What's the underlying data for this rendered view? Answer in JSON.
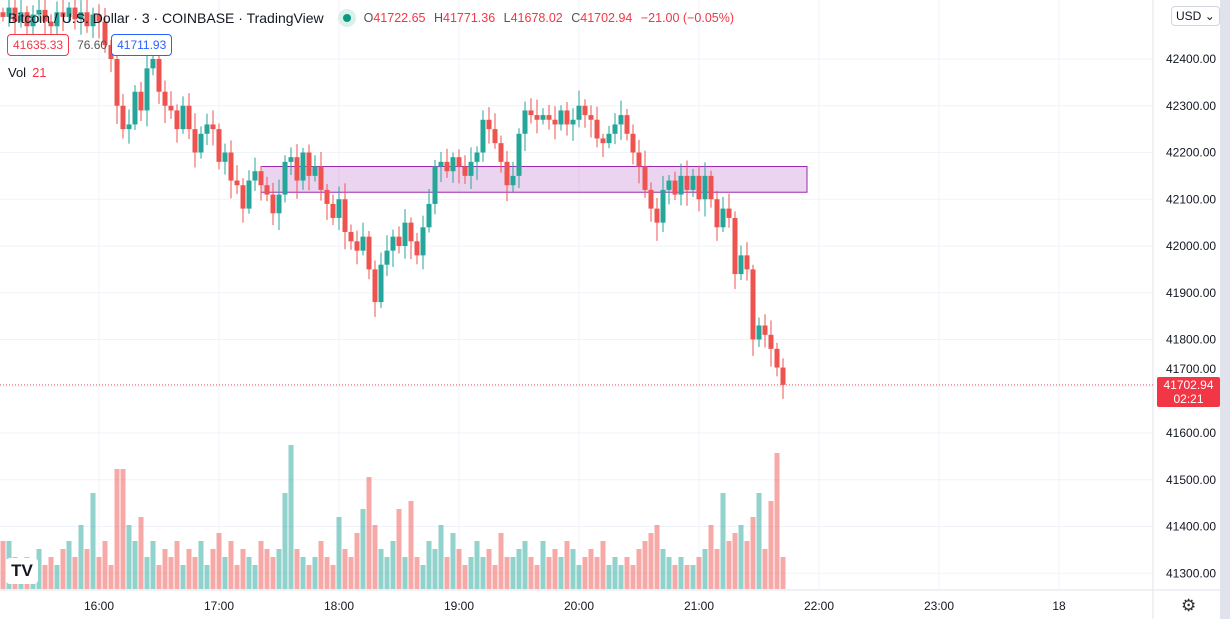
{
  "header": {
    "symbol": "Bitcoin / U.S. Dollar · 3 · COINBASE · TradingView",
    "ohlc": {
      "o_label": "O",
      "o": "41722.65",
      "h_label": "H",
      "h": "41771.36",
      "l_label": "L",
      "l": "41678.02",
      "c_label": "C",
      "c": "41702.94",
      "change": "−21.00 (−0.05%)"
    },
    "bid": "41635.33",
    "spread": "76.60",
    "ask": "41711.93"
  },
  "volume": {
    "label": "Vol",
    "value": "21"
  },
  "currency": "USD",
  "last_price": {
    "price": "41702.94",
    "countdown": "02:21"
  },
  "price_ticks": [
    "42400.00",
    "42300.00",
    "42200.00",
    "42100.00",
    "42000.00",
    "41900.00",
    "41800.00",
    "41700.00",
    "41600.00",
    "41500.00",
    "41400.00",
    "41300.00"
  ],
  "time_ticks": [
    "16:00",
    "17:00",
    "18:00",
    "19:00",
    "20:00",
    "21:00",
    "22:00",
    "23:00",
    "18"
  ],
  "colors": {
    "up": "#26a69a",
    "down": "#ef5350",
    "zone": "#9c27b0"
  },
  "chart_data": {
    "type": "candlestick",
    "interval_min": 3,
    "first_open": 42500,
    "zone": [
      42115,
      42170
    ],
    "closes": [
      42490,
      42510,
      42480,
      42500,
      42470,
      42495,
      42505,
      42480,
      42470,
      42500,
      42490,
      42510,
      42485,
      42500,
      42470,
      42495,
      42480,
      42430,
      42400,
      42300,
      42250,
      42260,
      42330,
      42290,
      42380,
      42400,
      42330,
      42300,
      42290,
      42250,
      42300,
      42250,
      42200,
      42240,
      42260,
      42250,
      42180,
      42200,
      42140,
      42130,
      42080,
      42140,
      42160,
      42130,
      42110,
      42070,
      42110,
      42180,
      42190,
      42140,
      42200,
      42150,
      42170,
      42120,
      42090,
      42060,
      42100,
      42030,
      42010,
      41990,
      42020,
      41950,
      41880,
      41960,
      41990,
      42020,
      42000,
      42050,
      42010,
      41980,
      42040,
      42090,
      42170,
      42180,
      42160,
      42190,
      42170,
      42150,
      42180,
      42200,
      42270,
      42250,
      42220,
      42180,
      42130,
      42150,
      42240,
      42290,
      42280,
      42270,
      42280,
      42270,
      42260,
      42290,
      42260,
      42270,
      42300,
      42280,
      42270,
      42230,
      42220,
      42240,
      42260,
      42280,
      42240,
      42200,
      42170,
      42120,
      42080,
      42050,
      42120,
      42140,
      42110,
      42150,
      42120,
      42150,
      42100,
      42150,
      42100,
      42040,
      42080,
      42060,
      41940,
      41980,
      41950,
      41800,
      41830,
      41810,
      41780,
      41740,
      41703
    ],
    "volumes": [
      30,
      30,
      20,
      15,
      20,
      15,
      25,
      15,
      20,
      15,
      25,
      30,
      20,
      40,
      25,
      60,
      20,
      30,
      15,
      75,
      75,
      40,
      30,
      45,
      20,
      30,
      15,
      25,
      20,
      30,
      15,
      25,
      20,
      30,
      15,
      25,
      35,
      20,
      30,
      15,
      25,
      20,
      15,
      30,
      25,
      20,
      25,
      60,
      90,
      25,
      20,
      15,
      20,
      30,
      20,
      15,
      45,
      25,
      20,
      35,
      50,
      70,
      40,
      25,
      20,
      30,
      50,
      20,
      55,
      20,
      15,
      30,
      25,
      40,
      20,
      35,
      25,
      15,
      20,
      30,
      20,
      25,
      15,
      35,
      20,
      20,
      25,
      30,
      20,
      15,
      30,
      20,
      25,
      20,
      30,
      25,
      15,
      20,
      25,
      20,
      30,
      15,
      20,
      15,
      20,
      15,
      25,
      30,
      35,
      40,
      25,
      20,
      15,
      20,
      15,
      15,
      20,
      25,
      40,
      25,
      60,
      30,
      35,
      40,
      30,
      45,
      60,
      25,
      55,
      85,
      20
    ]
  }
}
